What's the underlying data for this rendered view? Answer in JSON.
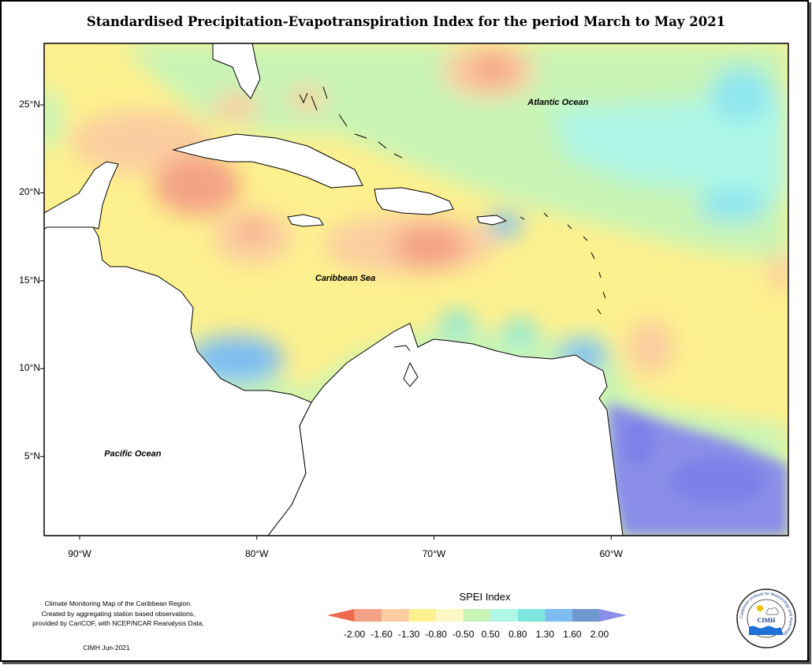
{
  "title": "Standardised Precipitation-Evapotranspiration Index for the period March to May 2021",
  "map": {
    "lon_range": [
      -92,
      -50
    ],
    "lat_range": [
      0.5,
      28.5
    ],
    "lat_ticks": [
      {
        "label": "25°N",
        "value": 25
      },
      {
        "label": "20°N",
        "value": 20
      },
      {
        "label": "15°N",
        "value": 15
      },
      {
        "label": "10°N",
        "value": 10
      },
      {
        "label": "5°N",
        "value": 5
      }
    ],
    "lon_ticks": [
      {
        "label": "90°W",
        "value": -90
      },
      {
        "label": "80°W",
        "value": -80
      },
      {
        "label": "70°W",
        "value": -70
      },
      {
        "label": "60°W",
        "value": -60
      }
    ],
    "labels": [
      {
        "text": "Atlantic Ocean",
        "lon": -63,
        "lat": 25
      },
      {
        "text": "Caribbean Sea",
        "lon": -75,
        "lat": 15
      },
      {
        "text": "Pacific Ocean",
        "lon": -87,
        "lat": 5
      }
    ]
  },
  "legend": {
    "title": "SPEI Index",
    "ticks": [
      "-2.00",
      "-1.60",
      "-1.30",
      "-0.80",
      "-0.50",
      "0.50",
      "0.80",
      "1.30",
      "1.60",
      "2.00"
    ],
    "colors": [
      "#f06a50",
      "#f4a286",
      "#fbcda0",
      "#fdf08e",
      "#fdf7c6",
      "#c8f4b6",
      "#aef7e6",
      "#7ce5dc",
      "#7dbdf2",
      "#6f98cf",
      "#8a8ee8"
    ]
  },
  "credits": {
    "line1": "Climate Monitoring Map of the Caribbean Region.",
    "line2": "Created by aggregating station based observations,",
    "line3": "provided by CariCOF, with NCEP/NCAR Reanalysis Data.",
    "date": "CIMH Jun-2021"
  },
  "logo": {
    "name": "CIMH",
    "ring_text": "Caribbean Institute for Meteorology and Hydrology"
  }
}
